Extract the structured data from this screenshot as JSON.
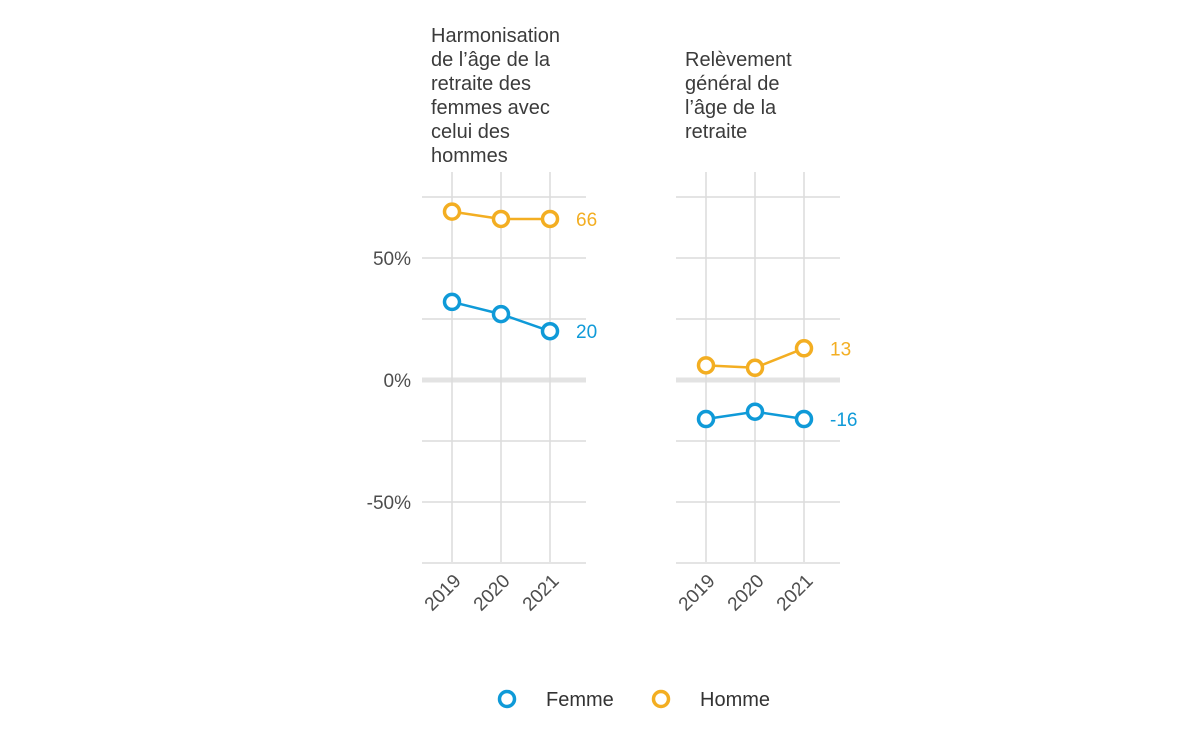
{
  "chart_data": {
    "type": "line",
    "x": [
      "2019",
      "2020",
      "2021"
    ],
    "ylim": [
      -0.8,
      0.8
    ],
    "y_ticks": [
      {
        "value": 0.5,
        "label": "50%"
      },
      {
        "value": 0.0,
        "label": "0%"
      },
      {
        "value": -0.5,
        "label": "-50%"
      }
    ],
    "grid": true,
    "legend_position": "bottom",
    "colors": {
      "Femme": "#0f9ad8",
      "Homme": "#f3ae22"
    },
    "legend": [
      "Femme",
      "Homme"
    ],
    "panels": [
      {
        "title_lines": [
          "Harmonisation",
          "de l’âge de la",
          "retraite des",
          "femmes avec",
          "celui des",
          "hommes"
        ],
        "series": [
          {
            "name": "Femme",
            "values": [
              0.32,
              0.27,
              0.2
            ],
            "end_label": "20"
          },
          {
            "name": "Homme",
            "values": [
              0.69,
              0.66,
              0.66
            ],
            "end_label": "66"
          }
        ]
      },
      {
        "title_lines": [
          "Relèvement",
          "général de",
          "l’âge de la",
          "retraite"
        ],
        "series": [
          {
            "name": "Femme",
            "values": [
              -0.16,
              -0.13,
              -0.16
            ],
            "end_label": "-16"
          },
          {
            "name": "Homme",
            "values": [
              0.06,
              0.05,
              0.13
            ],
            "end_label": "13"
          }
        ]
      }
    ]
  }
}
